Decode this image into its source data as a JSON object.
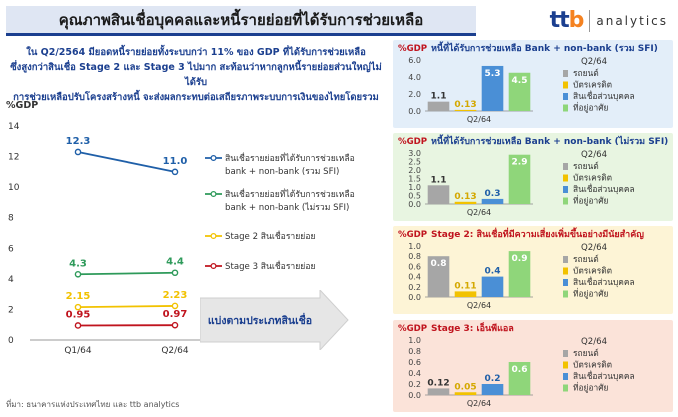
{
  "header": {
    "title": "คุณภาพสินเชื่อบุคคลและหนี้รายย่อยที่ได้รับการช่วยเหลือ",
    "brand_logo": "ttb",
    "brand_name": "analytics"
  },
  "summary": {
    "line1": "ใน Q2/2564 มียอดหนี้รายย่อยทั้งระบบกว่า 11% ของ GDP ที่ได้รับการช่วยเหลือ",
    "line2": "ซึ่งสูงกว่าสินเชื่อ Stage 2 และ Stage 3 ไปมาก สะท้อนว่าหากลูกหนี้รายย่อยส่วนใหญ่ไม่ได้รับ",
    "line3": "การช่วยเหลือปรับโครงสร้างหนี้ จะส่งผลกระทบต่อเสถียรภาพระบบการเงินของไทยโดยรวม"
  },
  "arrow_label": "แบ่งตามประเภทสินเชื่อ",
  "source": "ที่มา: ธนาคารแห่งประเทศไทย และ ttb analytics",
  "colors": {
    "blue_line": "#1f5fa8",
    "green_line": "#2e9a5a",
    "yellow_line": "#f2c200",
    "red_line": "#c0141e",
    "bar_grey": "#a6a6a6",
    "bar_yellow": "#f2c200",
    "bar_blue": "#4a8fd6",
    "bar_green": "#8fd67a",
    "title_blue": "#1b3f8f",
    "title_red": "#c0141e"
  },
  "chart_data": [
    {
      "type": "line",
      "title": "",
      "ylabel": "%GDP",
      "x": [
        "Q1/64",
        "Q2/64"
      ],
      "ylim": [
        0,
        14
      ],
      "yticks": [
        0,
        2,
        4,
        6,
        8,
        10,
        12,
        14
      ],
      "series": [
        {
          "name": "สินเชื่อรายย่อยที่ได้รับการช่วยเหลือ bank + non-bank (รวม SFI)",
          "values": [
            12.3,
            11.0
          ],
          "labels": [
            "12.3",
            "11.0"
          ],
          "color": "#1f5fa8"
        },
        {
          "name": "สินเชื่อรายย่อยที่ได้รับการช่วยเหลือ bank + non-bank (ไม่รวม SFI)",
          "values": [
            4.3,
            4.4
          ],
          "labels": [
            "4.3",
            "4.4"
          ],
          "color": "#2e9a5a"
        },
        {
          "name": "Stage 2 สินเชื่อรายย่อย",
          "values": [
            2.15,
            2.23
          ],
          "labels": [
            "2.15",
            "2.23"
          ],
          "color": "#f2c200"
        },
        {
          "name": "Stage 3 สินเชื่อรายย่อย",
          "values": [
            0.95,
            0.97
          ],
          "labels": [
            "0.95",
            "0.97"
          ],
          "color": "#c0141e"
        }
      ]
    },
    {
      "type": "bar",
      "title": "หนี้ที่ได้รับการช่วยเหลือ Bank + non-bank (รวม SFI)",
      "ylabel": "%GDP",
      "xlabel": "Q2/64",
      "ylim": [
        0,
        6
      ],
      "yticks": [
        "0.0",
        "2.0",
        "4.0",
        "6.0"
      ],
      "categories": [
        "รถยนต์",
        "บัตรเครดิต",
        "สินเชื่อส่วนบุคคล",
        "ที่อยู่อาศัย"
      ],
      "values": [
        1.1,
        0.13,
        5.3,
        4.5
      ],
      "labels": [
        "1.1",
        "0.13",
        "5.3",
        "4.5"
      ],
      "legend_title": "Q2/64",
      "bg": "#e3eef9"
    },
    {
      "type": "bar",
      "title": "หนี้ที่ได้รับการช่วยเหลือ Bank + non-bank (ไม่รวม SFI)",
      "ylabel": "%GDP",
      "xlabel": "Q2/64",
      "ylim": [
        0,
        3
      ],
      "yticks": [
        "0.0",
        "0.5",
        "1.0",
        "1.5",
        "2.0",
        "2.5",
        "3.0"
      ],
      "categories": [
        "รถยนต์",
        "บัตรเครดิต",
        "สินเชื่อส่วนบุคคล",
        "ที่อยู่อาศัย"
      ],
      "values": [
        1.1,
        0.13,
        0.3,
        2.9
      ],
      "labels": [
        "1.1",
        "0.13",
        "0.3",
        "2.9"
      ],
      "legend_title": "Q2/64",
      "bg": "#e8f5e1"
    },
    {
      "type": "bar",
      "title": "Stage 2: สินเชื่อที่มีความเสี่ยงเพิ่มขึ้นอย่างมีนัยสำคัญ",
      "ylabel": "%GDP",
      "xlabel": "Q2/64",
      "ylim": [
        0,
        1
      ],
      "yticks": [
        "0.0",
        "0.2",
        "0.4",
        "0.6",
        "0.8",
        "1.0"
      ],
      "categories": [
        "รถยนต์",
        "บัตรเครดิต",
        "สินเชื่อส่วนบุคคล",
        "ที่อยู่อาศัย"
      ],
      "values": [
        0.8,
        0.11,
        0.4,
        0.9
      ],
      "labels": [
        "0.8",
        "0.11",
        "0.4",
        "0.9"
      ],
      "legend_title": "Q2/64",
      "bg": "#fdf4d6"
    },
    {
      "type": "bar",
      "title": "Stage 3: เอ็นพีแอล",
      "ylabel": "%GDP",
      "xlabel": "Q2/64",
      "ylim": [
        0,
        1
      ],
      "yticks": [
        "0.0",
        "0.2",
        "0.4",
        "0.6",
        "0.8",
        "1.0"
      ],
      "categories": [
        "รถยนต์",
        "บัตรเครดิต",
        "สินเชื่อส่วนบุคคล",
        "ที่อยู่อาศัย"
      ],
      "values": [
        0.12,
        0.05,
        0.2,
        0.6
      ],
      "labels": [
        "0.12",
        "0.05",
        "0.2",
        "0.6"
      ],
      "legend_title": "Q2/64",
      "bg": "#fbe3d9"
    }
  ]
}
